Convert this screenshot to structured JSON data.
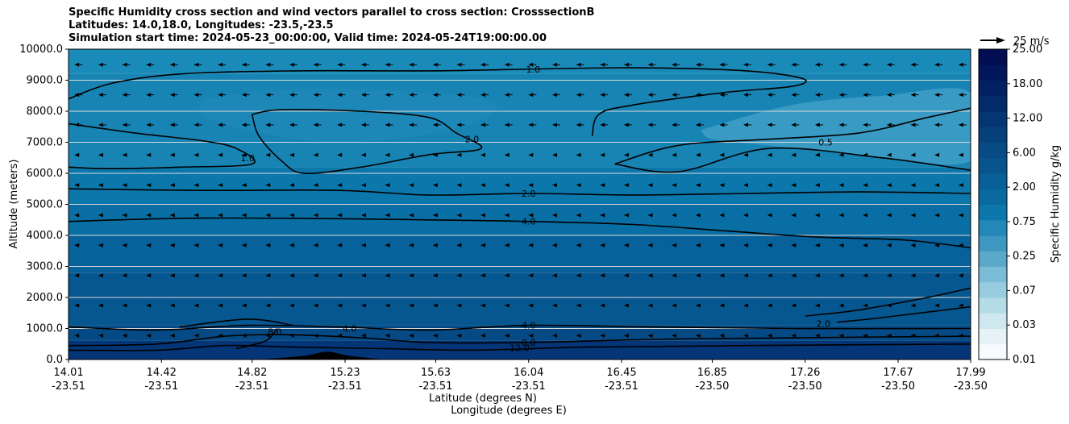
{
  "chart_data": {
    "type": "heatmap",
    "title_lines": [
      "Specific Humidity cross section and wind vectors parallel to cross section: CrosssectionB",
      "Latitudes: 14.0,18.0, Longitudes: -23.5,-23.5",
      "Simulation start time: 2024-05-23_00:00:00, Valid time: 2024-05-24T19:00:00.00"
    ],
    "ylabel": "Altitude (meters)",
    "xlabel": "Latitude (degrees N)",
    "xlabel2": "Longitude (degrees E)",
    "ylim": [
      0,
      10000
    ],
    "xlim": [
      14.01,
      17.99
    ],
    "y_ticks": [
      {
        "value": 0,
        "label": "0.0"
      },
      {
        "value": 1000,
        "label": "1000.0"
      },
      {
        "value": 2000,
        "label": "2000.0"
      },
      {
        "value": 3000,
        "label": "3000.0"
      },
      {
        "value": 4000,
        "label": "4000.0"
      },
      {
        "value": 5000,
        "label": "5000.0"
      },
      {
        "value": 6000,
        "label": "6000.0"
      },
      {
        "value": 7000,
        "label": "7000.0"
      },
      {
        "value": 8000,
        "label": "8000.0"
      },
      {
        "value": 9000,
        "label": "9000.0"
      },
      {
        "value": 10000,
        "label": "10000.0"
      }
    ],
    "x_ticks": [
      {
        "lat": 14.01,
        "lat_label": "14.01",
        "lon_label": "-23.51"
      },
      {
        "lat": 14.42,
        "lat_label": "14.42",
        "lon_label": "-23.51"
      },
      {
        "lat": 14.82,
        "lat_label": "14.82",
        "lon_label": "-23.51"
      },
      {
        "lat": 15.23,
        "lat_label": "15.23",
        "lon_label": "-23.51"
      },
      {
        "lat": 15.63,
        "lat_label": "15.63",
        "lon_label": "-23.51"
      },
      {
        "lat": 16.04,
        "lat_label": "16.04",
        "lon_label": "-23.51"
      },
      {
        "lat": 16.45,
        "lat_label": "16.45",
        "lon_label": "-23.51"
      },
      {
        "lat": 16.85,
        "lat_label": "16.85",
        "lon_label": "-23.50"
      },
      {
        "lat": 17.26,
        "lat_label": "17.26",
        "lon_label": "-23.50"
      },
      {
        "lat": 17.67,
        "lat_label": "17.67",
        "lon_label": "-23.50"
      },
      {
        "lat": 17.99,
        "lat_label": "17.99",
        "lon_label": "-23.50"
      }
    ],
    "colorbar": {
      "label": "Specific Humidity g/kg",
      "levels": [
        "0.01",
        "0.03",
        "0.07",
        "0.25",
        "0.75",
        "2.00",
        "6.00",
        "12.00",
        "18.00",
        "25.00"
      ],
      "colors": [
        "#f7fbff",
        "#e6f2f6",
        "#cfe7ee",
        "#b5dbe7",
        "#98cde0",
        "#7bbcd6",
        "#5aa9cb",
        "#3e97c0",
        "#2387b7",
        "#0b77ab",
        "#0a6aa0",
        "#095f97",
        "#08558e",
        "#074c85",
        "#06417b",
        "#053673",
        "#042b69",
        "#032162",
        "#02175b",
        "#020d52"
      ]
    },
    "reference_vector": {
      "label": "25 m/s",
      "speed": 25
    },
    "humidity_bands": [
      {
        "bottom_km": 9.2,
        "top_km": 10.0,
        "color": "#1a8ab8"
      },
      {
        "bottom_km": 6.2,
        "top_km": 9.2,
        "color": "#1784b4"
      },
      {
        "bottom_km": 5.0,
        "top_km": 6.2,
        "color": "#0b77ab"
      },
      {
        "bottom_km": 4.0,
        "top_km": 5.0,
        "color": "#086ea3"
      },
      {
        "bottom_km": 2.8,
        "top_km": 4.0,
        "color": "#07619a"
      },
      {
        "bottom_km": 1.1,
        "top_km": 2.8,
        "color": "#06568f"
      },
      {
        "bottom_km": 0.6,
        "top_km": 1.1,
        "color": "#054a84"
      },
      {
        "bottom_km": 0.0,
        "top_km": 0.6,
        "color": "#033577"
      }
    ],
    "dry_regions": [
      {
        "name": "dry-region-east",
        "color": "#3d9cc4",
        "points": [
          [
            16.8,
            7.4
          ],
          [
            17.2,
            8.2
          ],
          [
            17.6,
            8.5
          ],
          [
            17.99,
            8.6
          ],
          [
            17.99,
            6.4
          ],
          [
            17.5,
            6.6
          ],
          [
            17.1,
            6.9
          ],
          [
            16.85,
            7.1
          ]
        ]
      },
      {
        "name": "dry-region-west",
        "color": "#1e88b8",
        "points": [
          [
            14.6,
            8.4
          ],
          [
            15.0,
            8.7
          ],
          [
            15.6,
            8.6
          ],
          [
            15.9,
            8.2
          ],
          [
            15.7,
            7.4
          ],
          [
            15.2,
            7.0
          ],
          [
            14.8,
            7.4
          ],
          [
            14.6,
            7.9
          ]
        ]
      }
    ],
    "contours": [
      {
        "level": "1.0",
        "label_at": [
          16.06,
          9.35
        ],
        "points": [
          [
            14.01,
            8.4
          ],
          [
            14.2,
            8.9
          ],
          [
            14.5,
            9.2
          ],
          [
            15.0,
            9.3
          ],
          [
            15.6,
            9.3
          ],
          [
            16.0,
            9.35
          ],
          [
            16.5,
            9.4
          ],
          [
            17.0,
            9.3
          ],
          [
            17.25,
            9.05
          ],
          [
            17.2,
            8.8
          ],
          [
            16.9,
            8.6
          ],
          [
            16.5,
            8.2
          ],
          [
            16.35,
            7.9
          ],
          [
            16.32,
            7.2
          ]
        ]
      },
      {
        "level": "2.0",
        "label_at": [
          15.79,
          7.1
        ],
        "points": [
          [
            14.82,
            7.9
          ],
          [
            14.95,
            8.05
          ],
          [
            15.3,
            8.0
          ],
          [
            15.6,
            7.8
          ],
          [
            15.72,
            7.3
          ],
          [
            15.83,
            6.8
          ],
          [
            15.6,
            6.6
          ],
          [
            15.3,
            6.2
          ],
          [
            15.05,
            6.0
          ],
          [
            14.95,
            6.4
          ],
          [
            14.85,
            7.2
          ],
          [
            14.82,
            7.9
          ]
        ]
      },
      {
        "level": "1.0",
        "label_at": [
          14.8,
          6.5
        ],
        "points": [
          [
            14.01,
            7.6
          ],
          [
            14.3,
            7.3
          ],
          [
            14.6,
            7.05
          ],
          [
            14.75,
            6.8
          ],
          [
            14.82,
            6.3
          ],
          [
            14.5,
            6.2
          ],
          [
            14.2,
            6.15
          ],
          [
            14.01,
            6.2
          ]
        ]
      },
      {
        "level": "0.5",
        "label_at": [
          17.35,
          7.0
        ],
        "points": [
          [
            16.42,
            6.3
          ],
          [
            16.7,
            6.9
          ],
          [
            17.1,
            7.1
          ],
          [
            17.5,
            7.3
          ],
          [
            17.8,
            7.8
          ],
          [
            17.99,
            8.1
          ]
        ]
      },
      {
        "level": "",
        "label_at": null,
        "points": [
          [
            16.42,
            6.3
          ],
          [
            16.7,
            6.05
          ],
          [
            17.1,
            6.8
          ],
          [
            17.6,
            6.5
          ],
          [
            17.99,
            6.1
          ]
        ]
      },
      {
        "level": "2.0",
        "label_at": [
          16.04,
          5.35
        ],
        "points": [
          [
            14.01,
            5.5
          ],
          [
            14.6,
            5.45
          ],
          [
            15.2,
            5.45
          ],
          [
            15.6,
            5.3
          ],
          [
            16.04,
            5.35
          ],
          [
            16.5,
            5.3
          ],
          [
            17.0,
            5.35
          ],
          [
            17.5,
            5.4
          ],
          [
            17.99,
            5.35
          ]
        ]
      },
      {
        "level": "4.0",
        "label_at": [
          16.04,
          4.45
        ],
        "points": [
          [
            14.01,
            4.45
          ],
          [
            14.5,
            4.55
          ],
          [
            15.0,
            4.55
          ],
          [
            15.6,
            4.5
          ],
          [
            16.04,
            4.45
          ],
          [
            16.5,
            4.35
          ],
          [
            16.9,
            4.15
          ],
          [
            17.3,
            3.95
          ],
          [
            17.7,
            3.85
          ],
          [
            17.99,
            3.6
          ]
        ]
      },
      {
        "level": "2.0",
        "label_at": [
          17.34,
          1.15
        ],
        "points": [
          [
            17.4,
            1.2
          ],
          [
            17.6,
            1.35
          ],
          [
            17.99,
            1.7
          ]
        ]
      },
      {
        "level": "",
        "label_at": null,
        "points": [
          [
            17.26,
            1.4
          ],
          [
            17.5,
            1.6
          ],
          [
            17.8,
            2.0
          ],
          [
            17.99,
            2.3
          ]
        ]
      },
      {
        "level": "4.0",
        "label_at": [
          16.04,
          1.1
        ],
        "points": [
          [
            14.01,
            1.05
          ],
          [
            14.4,
            0.95
          ],
          [
            14.8,
            1.1
          ],
          [
            15.2,
            1.05
          ],
          [
            15.6,
            0.95
          ],
          [
            16.04,
            1.1
          ],
          [
            16.6,
            1.05
          ],
          [
            17.2,
            1.0
          ],
          [
            17.99,
            1.0
          ]
        ]
      },
      {
        "level": "4.0",
        "label_at": [
          15.25,
          1.0
        ],
        "points": [
          [
            14.5,
            1.05
          ],
          [
            14.8,
            1.3
          ],
          [
            15.0,
            1.1
          ]
        ]
      },
      {
        "level": "8.0",
        "label_at": [
          16.04,
          0.55
        ],
        "points": [
          [
            14.01,
            0.45
          ],
          [
            14.4,
            0.5
          ],
          [
            14.7,
            0.75
          ],
          [
            14.95,
            0.8
          ],
          [
            15.3,
            0.7
          ],
          [
            15.6,
            0.55
          ],
          [
            16.04,
            0.55
          ],
          [
            16.6,
            0.65
          ],
          [
            17.2,
            0.7
          ],
          [
            17.99,
            0.75
          ]
        ]
      },
      {
        "level": "12.0",
        "label_at": [
          16.0,
          0.38
        ],
        "points": [
          [
            14.01,
            0.3
          ],
          [
            14.4,
            0.3
          ],
          [
            14.7,
            0.45
          ],
          [
            15.0,
            0.4
          ],
          [
            15.4,
            0.35
          ],
          [
            15.8,
            0.3
          ],
          [
            16.3,
            0.4
          ],
          [
            17.0,
            0.45
          ],
          [
            17.99,
            0.5
          ]
        ]
      },
      {
        "level": "8.0",
        "label_at": [
          14.92,
          0.9
        ],
        "points": [
          [
            14.75,
            0.35
          ],
          [
            14.88,
            0.6
          ],
          [
            14.93,
            1.0
          ]
        ]
      }
    ],
    "terrain": [
      [
        14.85,
        0
      ],
      [
        15.05,
        0.12
      ],
      [
        15.15,
        0.25
      ],
      [
        15.25,
        0.12
      ],
      [
        15.4,
        0
      ]
    ],
    "wind_vectors": {
      "direction": "toward south (leftward)",
      "typical_speed_ms": 5
    }
  }
}
